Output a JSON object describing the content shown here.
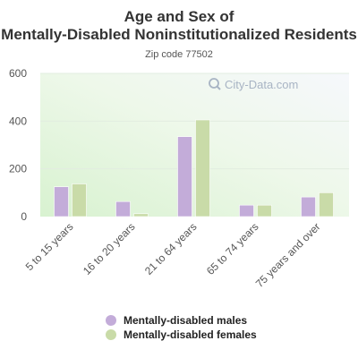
{
  "chart_data": {
    "type": "bar",
    "title": "Age and Sex of Mentally-Disabled Noninstitutionalized Residents",
    "subtitle": "Zip code 77502",
    "categories": [
      "5 to 15 years",
      "16 to 20 years",
      "21 to 64 years",
      "65 to 74 years",
      "75 years and over"
    ],
    "series": [
      {
        "name": "Mentally-disabled males",
        "color": "#c3acd9",
        "values": [
          125,
          63,
          335,
          48,
          82
        ]
      },
      {
        "name": "Mentally-disabled females",
        "color": "#c9dba8",
        "values": [
          137,
          12,
          405,
          48,
          100
        ]
      }
    ],
    "yticks": [
      0,
      200,
      400,
      600
    ],
    "ylim": [
      0,
      600
    ],
    "grid": true,
    "legend_position": "bottom"
  },
  "watermark": {
    "text": "City-Data.com",
    "icon": "magnifier-icon"
  }
}
